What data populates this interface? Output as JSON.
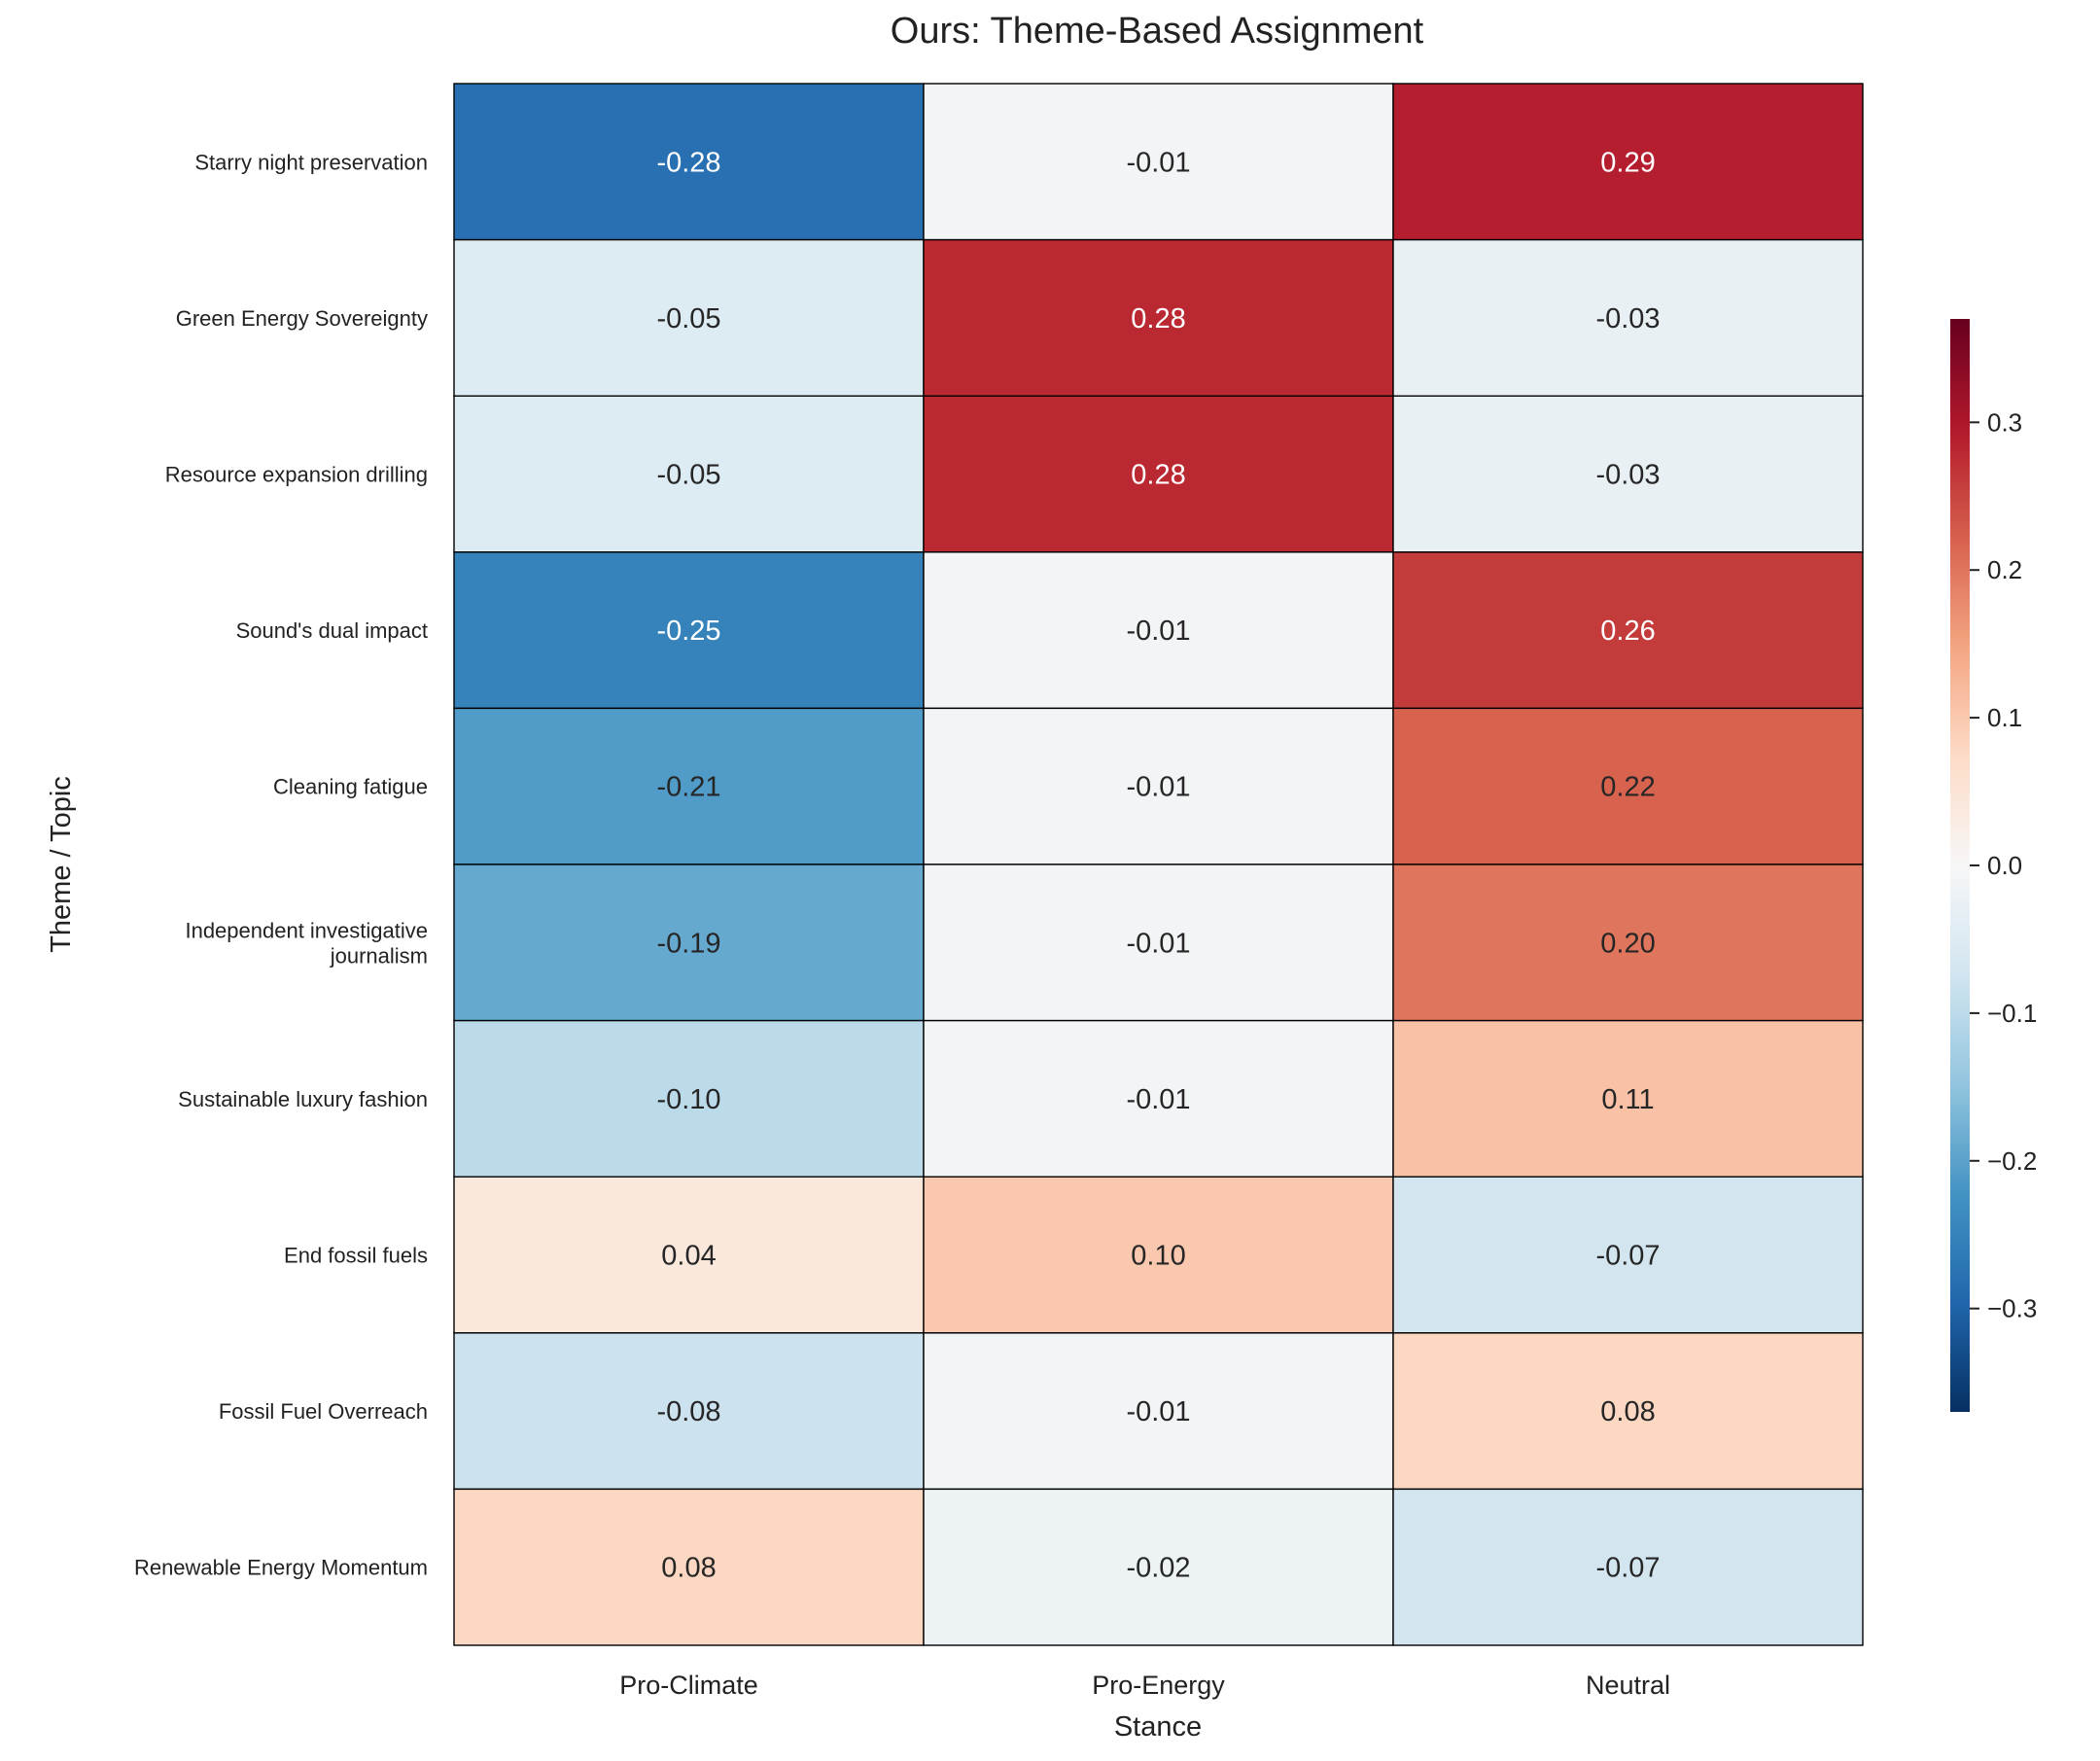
{
  "chart_data": {
    "type": "heatmap",
    "title": "Ours: Theme-Based Assignment",
    "xlabel": "Stance",
    "ylabel": "Theme / Topic",
    "columns": [
      "Pro-Climate",
      "Pro-Energy",
      "Neutral"
    ],
    "rows": [
      [
        "Starry night preservation"
      ],
      [
        "Green Energy Sovereignty"
      ],
      [
        "Resource expansion drilling"
      ],
      [
        "Sound's dual impact"
      ],
      [
        "Cleaning fatigue"
      ],
      [
        "Independent investigative",
        "journalism"
      ],
      [
        "Sustainable luxury fashion"
      ],
      [
        "End fossil fuels"
      ],
      [
        "Fossil Fuel Overreach"
      ],
      [
        "Renewable Energy Momentum"
      ]
    ],
    "values": [
      [
        -0.28,
        -0.01,
        0.29
      ],
      [
        -0.05,
        0.28,
        -0.03
      ],
      [
        -0.05,
        0.28,
        -0.03
      ],
      [
        -0.25,
        -0.01,
        0.26
      ],
      [
        -0.21,
        -0.01,
        0.22
      ],
      [
        -0.19,
        -0.01,
        0.2
      ],
      [
        -0.1,
        -0.01,
        0.11
      ],
      [
        0.04,
        0.1,
        -0.07
      ],
      [
        -0.08,
        -0.01,
        0.08
      ],
      [
        0.08,
        -0.02,
        -0.07
      ]
    ],
    "colormap": "RdBu_r",
    "vlim": [
      -0.37,
      0.37
    ],
    "colorbar": {
      "placement": "right",
      "ticks": [
        0.3,
        0.2,
        0.1,
        0.0,
        -0.1,
        -0.2,
        -0.3
      ],
      "tick_labels": [
        "0.3",
        "0.2",
        "0.1",
        "0.0",
        "−0.1",
        "−0.2",
        "−0.3"
      ]
    },
    "grid": false,
    "cell_border_color": "#000000"
  }
}
